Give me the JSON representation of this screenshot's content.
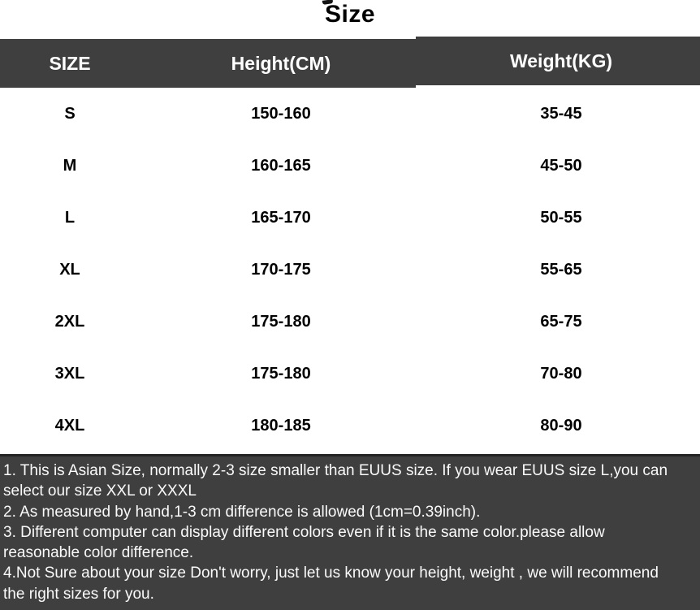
{
  "title": "Size",
  "colors": {
    "header_bg": "#3f3f3f",
    "header_text": "#ffffff",
    "body_bg": "#ffffff",
    "body_text": "#000000",
    "notes_bg": "#3f3f3f",
    "notes_text": "#fafafa"
  },
  "chart_data": {
    "type": "table",
    "title": "Size",
    "columns": [
      "SIZE",
      "Height(CM)",
      "Weight(KG)"
    ],
    "rows": [
      {
        "size": "S",
        "height": "150-160",
        "weight": "35-45"
      },
      {
        "size": "M",
        "height": "160-165",
        "weight": "45-50"
      },
      {
        "size": "L",
        "height": "165-170",
        "weight": "50-55"
      },
      {
        "size": "XL",
        "height": "170-175",
        "weight": "55-65"
      },
      {
        "size": "2XL",
        "height": "175-180",
        "weight": "65-75"
      },
      {
        "size": "3XL",
        "height": "175-180",
        "weight": "70-80"
      },
      {
        "size": "4XL",
        "height": "180-185",
        "weight": "80-90"
      }
    ],
    "notes_display_lines": [
      "1. This is Asian Size, normally 2-3 size smaller than EUUS size. If you wear EUUS size L,you can",
      "select our size XXL or XXXL",
      "2. As measured by hand,1-3 cm difference is allowed (1cm=0.39inch).",
      "3. Different computer can display different colors even if it is the same color.please allow",
      "reasonable color difference.",
      "4.Not Sure about your size Don't worry, just let us know your height, weight , we will recommend",
      "the right sizes for you."
    ]
  }
}
